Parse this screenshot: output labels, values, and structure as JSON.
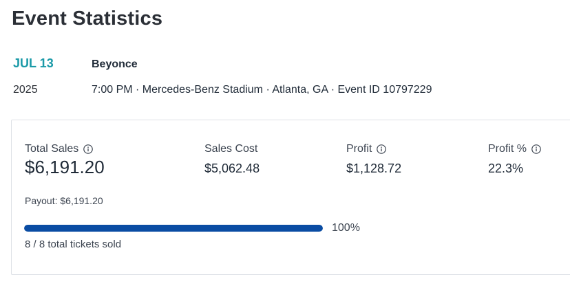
{
  "page": {
    "title": "Event Statistics"
  },
  "event": {
    "date": "JUL 13",
    "year": "2025",
    "name": "Beyonce",
    "details": "7:00 PM · Mercedes-Benz Stadium · Atlanta, GA · Event ID 10797229"
  },
  "stats": {
    "total_sales": {
      "label": "Total Sales",
      "value": "$6,191.20",
      "icon": "info-icon"
    },
    "sales_cost": {
      "label": "Sales Cost",
      "value": "$5,062.48"
    },
    "profit": {
      "label": "Profit",
      "value": "$1,128.72",
      "icon": "info-icon"
    },
    "profit_pct": {
      "label": "Profit %",
      "value": "22.3%",
      "icon": "info-icon"
    },
    "payout": "Payout: $6,191.20",
    "progress": {
      "fraction": 1.0,
      "label": "100%",
      "tickets_text": "8 / 8 total tickets sold"
    }
  },
  "colors": {
    "accent_date": "#1b9aa8",
    "progress_fill": "#0a4ca3",
    "progress_track": "#e3e6ea"
  }
}
